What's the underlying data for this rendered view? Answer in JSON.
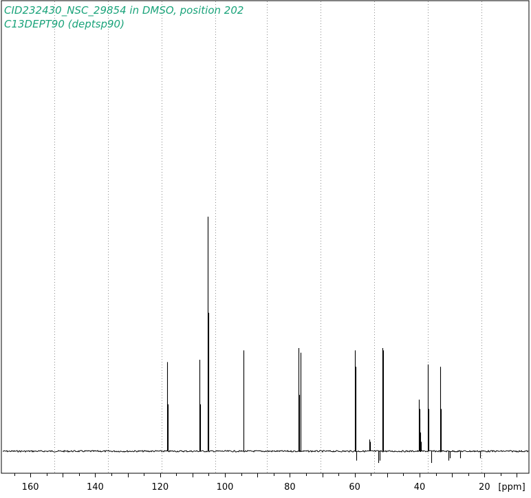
{
  "header": {
    "title": "CID232430_NSC_29854 in DMSO, position 202",
    "subtitle": "C13DEPT90 (deptsp90)"
  },
  "colors": {
    "title": "#1aa37a",
    "trace": "#000000",
    "grid": "#888888",
    "frame": "#000000"
  },
  "chart_data": {
    "type": "line",
    "title": "CID232430_NSC_29854 in DMSO, position 202",
    "subtitle": "C13DEPT90 (deptsp90)",
    "xlabel": "[ppm]",
    "x_reversed": true,
    "xlim": [
      168.5,
      6.5
    ],
    "ylim": [
      -0.06,
      1.0
    ],
    "grid": "vertical-dotted",
    "xticks": [
      {
        "value": 160,
        "label": "160"
      },
      {
        "value": 140,
        "label": "140"
      },
      {
        "value": 120,
        "label": "120"
      },
      {
        "value": 100,
        "label": "100"
      },
      {
        "value": 80,
        "label": "80"
      },
      {
        "value": 60,
        "label": "60"
      },
      {
        "value": 40,
        "label": "40"
      },
      {
        "value": 20,
        "label": "20"
      }
    ],
    "grid_x": [
      152.5,
      136,
      119.5,
      103,
      87,
      70.5,
      54,
      37.5,
      21
    ],
    "peaks": [
      {
        "ppm": 117.8,
        "intensity": 0.38
      },
      {
        "ppm": 117.6,
        "intensity": 0.2
      },
      {
        "ppm": 107.9,
        "intensity": 0.39
      },
      {
        "ppm": 107.7,
        "intensity": 0.2
      },
      {
        "ppm": 105.3,
        "intensity": 1.0
      },
      {
        "ppm": 105.1,
        "intensity": 0.59
      },
      {
        "ppm": 94.3,
        "intensity": 0.43
      },
      {
        "ppm": 77.3,
        "intensity": 0.44
      },
      {
        "ppm": 77.1,
        "intensity": 0.24
      },
      {
        "ppm": 76.6,
        "intensity": 0.42
      },
      {
        "ppm": 60.0,
        "intensity": 0.43
      },
      {
        "ppm": 59.8,
        "intensity": 0.36
      },
      {
        "ppm": 59.5,
        "intensity": -0.04
      },
      {
        "ppm": 55.5,
        "intensity": 0.05
      },
      {
        "ppm": 55.2,
        "intensity": 0.04
      },
      {
        "ppm": 52.8,
        "intensity": -0.05
      },
      {
        "ppm": 52.3,
        "intensity": -0.04
      },
      {
        "ppm": 51.4,
        "intensity": 0.44
      },
      {
        "ppm": 51.2,
        "intensity": 0.43
      },
      {
        "ppm": 40.3,
        "intensity": 0.22
      },
      {
        "ppm": 40.1,
        "intensity": 0.18
      },
      {
        "ppm": 39.9,
        "intensity": 0.14
      },
      {
        "ppm": 39.7,
        "intensity": 0.08
      },
      {
        "ppm": 39.5,
        "intensity": 0.04
      },
      {
        "ppm": 37.4,
        "intensity": 0.37
      },
      {
        "ppm": 37.2,
        "intensity": 0.18
      },
      {
        "ppm": 36.4,
        "intensity": -0.05
      },
      {
        "ppm": 33.6,
        "intensity": 0.36
      },
      {
        "ppm": 33.4,
        "intensity": 0.18
      },
      {
        "ppm": 31.0,
        "intensity": -0.04
      },
      {
        "ppm": 30.6,
        "intensity": -0.03
      },
      {
        "ppm": 27.5,
        "intensity": -0.03
      },
      {
        "ppm": 21.3,
        "intensity": -0.03
      }
    ]
  }
}
